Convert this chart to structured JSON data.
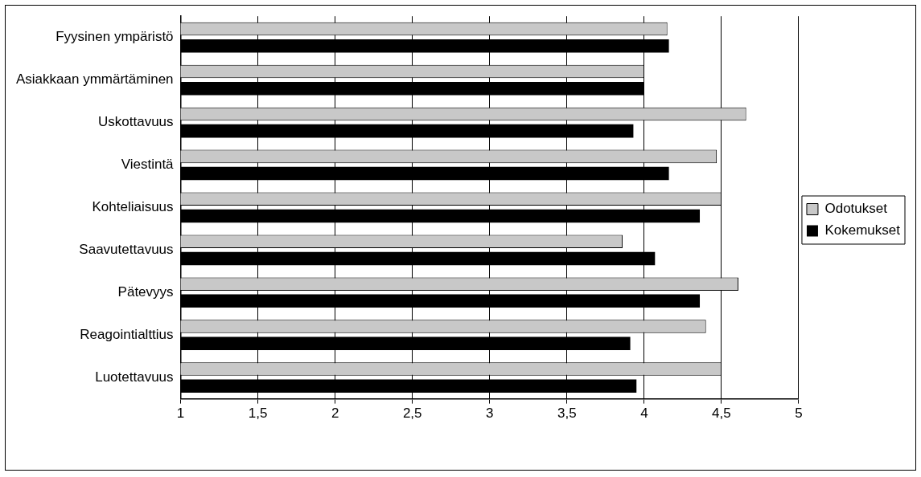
{
  "chart_data": {
    "type": "bar",
    "orientation": "horizontal",
    "categories": [
      "Fyysinen ympäristö",
      "Asiakkaan ymmärtäminen",
      "Uskottavuus",
      "Viestintä",
      "Kohteliaisuus",
      "Saavutettavuus",
      "Pätevyys",
      "Reagointialttius",
      "Luotettavuus"
    ],
    "series": [
      {
        "name": "Odotukset",
        "color": "#c8c8c8",
        "values": [
          4.15,
          4.0,
          4.66,
          4.47,
          4.5,
          3.86,
          4.61,
          4.4,
          4.5
        ]
      },
      {
        "name": "Kokemukset",
        "color": "#000000",
        "values": [
          4.16,
          4.0,
          3.93,
          4.16,
          4.36,
          4.07,
          4.36,
          3.91,
          3.95
        ]
      }
    ],
    "xlim": [
      1,
      5
    ],
    "xticks": [
      1,
      {
        "value": 1.5,
        "label": "1,5"
      },
      2,
      {
        "value": 2.5,
        "label": "2,5"
      },
      3,
      {
        "value": 3.5,
        "label": "3,5"
      },
      4,
      {
        "value": 4.5,
        "label": "4,5"
      },
      5
    ],
    "grid": "x",
    "legend": "right"
  }
}
